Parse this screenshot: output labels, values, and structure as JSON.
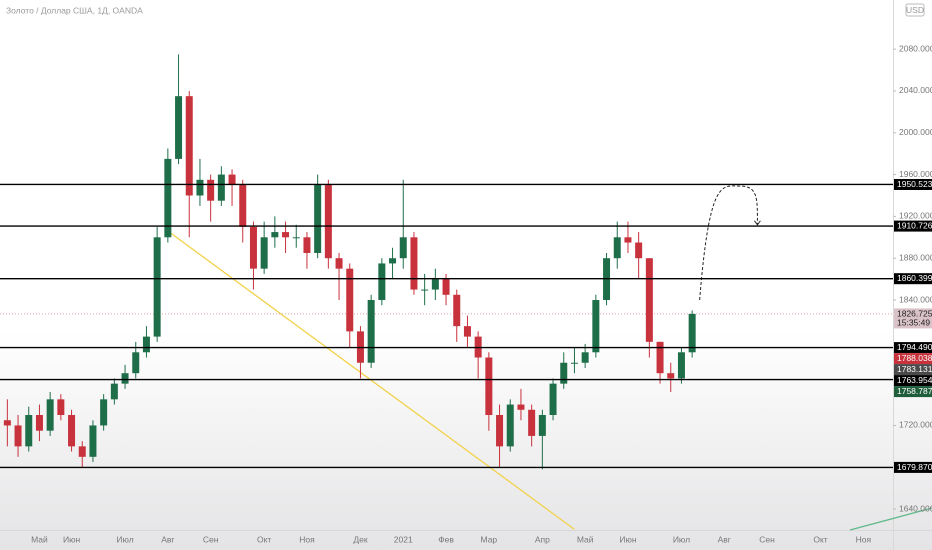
{
  "chart_data": {
    "type": "candlestick",
    "title": "Золото / Доллар США, 1Д, OANDA",
    "currency": "USD",
    "categories": [
      null,
      null,
      null,
      "Май",
      null,
      null,
      "Июн",
      null,
      null,
      null,
      null,
      "Июл",
      null,
      null,
      null,
      "Авг",
      null,
      null,
      null,
      "Сен",
      null,
      null,
      null,
      null,
      "Окт",
      null,
      null,
      null,
      "Ноя",
      null,
      null,
      null,
      null,
      "Дек",
      null,
      null,
      null,
      "2021",
      null,
      null,
      null,
      "Фев",
      null,
      null,
      null,
      "Мар",
      null,
      null,
      null,
      null,
      "Апр",
      null,
      null,
      null,
      "Май",
      null,
      null,
      null,
      "Июн",
      null,
      null,
      null,
      null,
      "Июл",
      null,
      null,
      null,
      "Авг",
      null,
      null,
      null,
      "Сен",
      null,
      null,
      null,
      null,
      "Окт",
      null,
      null,
      null,
      "Ноя",
      null
    ],
    "open": [
      1725,
      1720,
      1700,
      1730,
      1715,
      1745,
      1730,
      1700,
      1690,
      1720,
      1745,
      1760,
      1770,
      1790,
      1805,
      1900,
      1975,
      2035,
      1940,
      1955,
      1935,
      1960,
      1950,
      1910,
      1870,
      1900,
      1905,
      1900,
      1900,
      1885,
      1950,
      1880,
      1870,
      1810,
      1780,
      1840,
      1875,
      1880,
      1900,
      1850,
      1850,
      1860,
      1845,
      1815,
      1805,
      1785,
      1730,
      1700,
      1740,
      1735,
      1710,
      1730,
      1760,
      1780,
      1780,
      1790,
      1840,
      1880,
      1900,
      1895,
      1880,
      1800,
      1770,
      1765,
      1790,
      null,
      null,
      null,
      null,
      null,
      null,
      null,
      null,
      null,
      null,
      null,
      null,
      null,
      null,
      null,
      null,
      null
    ],
    "high": [
      1745,
      1730,
      1738,
      1740,
      1752,
      1750,
      1735,
      1705,
      1725,
      1750,
      1765,
      1778,
      1800,
      1815,
      1910,
      1985,
      2075,
      2040,
      1975,
      1960,
      1968,
      1965,
      1955,
      1915,
      1915,
      1920,
      1915,
      1912,
      1905,
      1960,
      1955,
      1885,
      1875,
      1815,
      1845,
      1880,
      1890,
      1955,
      1905,
      1865,
      1870,
      1865,
      1850,
      1825,
      1810,
      1790,
      1740,
      1745,
      1755,
      1740,
      1735,
      1765,
      1790,
      1795,
      1798,
      1845,
      1885,
      1915,
      1915,
      1905,
      1880,
      1800,
      1780,
      1795,
      1830,
      null,
      null,
      null,
      null,
      null,
      null,
      null,
      null,
      null,
      null,
      null,
      null,
      null,
      null,
      null,
      null,
      null
    ],
    "low": [
      1700,
      1690,
      1695,
      1705,
      1710,
      1725,
      1695,
      1680,
      1685,
      1715,
      1740,
      1755,
      1765,
      1785,
      1800,
      1895,
      1970,
      1900,
      1930,
      1915,
      1930,
      1930,
      1895,
      1850,
      1865,
      1890,
      1885,
      1890,
      1870,
      1880,
      1870,
      1840,
      1795,
      1765,
      1775,
      1835,
      1860,
      1870,
      1845,
      1835,
      1840,
      1835,
      1800,
      1795,
      1765,
      1715,
      1680,
      1695,
      1725,
      1700,
      1678,
      1725,
      1755,
      1770,
      1775,
      1785,
      1835,
      1870,
      1885,
      1860,
      1785,
      1760,
      1752,
      1760,
      1785,
      null,
      null,
      null,
      null,
      null,
      null,
      null,
      null,
      null,
      null,
      null,
      null,
      null,
      null,
      null,
      null,
      null
    ],
    "close": [
      1720,
      1700,
      1730,
      1715,
      1745,
      1730,
      1700,
      1690,
      1720,
      1745,
      1760,
      1770,
      1790,
      1805,
      1900,
      1975,
      2035,
      1940,
      1955,
      1935,
      1960,
      1950,
      1910,
      1870,
      1900,
      1905,
      1900,
      1900,
      1885,
      1950,
      1880,
      1870,
      1810,
      1780,
      1840,
      1875,
      1880,
      1900,
      1850,
      1850,
      1860,
      1845,
      1815,
      1805,
      1785,
      1730,
      1700,
      1740,
      1735,
      1710,
      1730,
      1760,
      1780,
      1780,
      1790,
      1840,
      1880,
      1900,
      1895,
      1880,
      1800,
      1770,
      1765,
      1790,
      1826.725,
      null,
      null,
      null,
      null,
      null,
      null,
      null,
      null,
      null,
      null,
      null,
      null,
      null,
      null,
      null,
      null,
      null
    ],
    "up_color": "#1f6e4a",
    "down_color": "#c8323c",
    "ylim": [
      1620,
      2127
    ],
    "yticks": [
      {
        "value": 1640,
        "label": "1640.000"
      },
      {
        "value": 1720,
        "label": "1720.000"
      },
      {
        "value": 1840,
        "label": "1840.000"
      },
      {
        "value": 1880,
        "label": "1880.000"
      },
      {
        "value": 1920,
        "label": "1920.000"
      },
      {
        "value": 1960,
        "label": "1960.000"
      },
      {
        "value": 2000,
        "label": "2000.000"
      },
      {
        "value": 2040,
        "label": "2040.000"
      },
      {
        "value": 2080,
        "label": "2080.000"
      }
    ],
    "levels": [
      1950.523,
      1910.726,
      1860.399,
      {
        "value": 1794.49,
        "label": "1794.490"
      },
      1763.954,
      {
        "value": 1679.87,
        "label": "1679.870"
      }
    ],
    "level_color": "#000000",
    "last_price": 1826.725,
    "last_price_color": "#d9c3c8",
    "countdown": "15:35:49",
    "markers": [
      {
        "value": 1788.038,
        "color": "#c8323c"
      },
      {
        "value": 1783.131,
        "color": "#4a4a4a"
      },
      {
        "value": 1758.787,
        "color": "#1f5e3b"
      }
    ],
    "trendline": {
      "color": "#f2d24b",
      "points": [
        [
          15,
          1906
        ],
        [
          53,
          1620.6
        ]
      ]
    },
    "projection": [
      [
        64.7,
        1840
      ],
      [
        68.5,
        1949
      ],
      [
        70.1,
        1912
      ]
    ]
  }
}
